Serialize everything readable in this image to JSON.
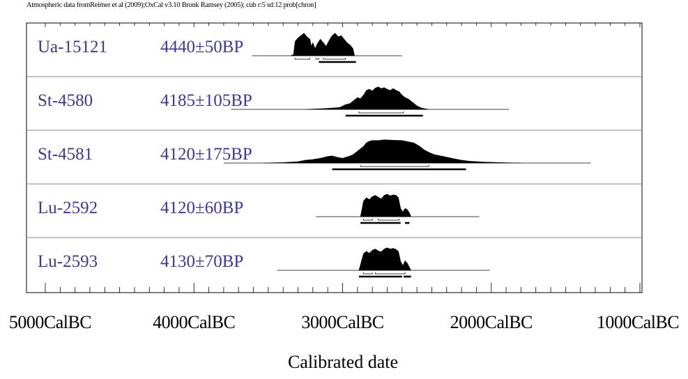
{
  "header": "Atmospheric data fromReimer et al (2009);OxCal v3.10 Bronk Ramsey (2005); cub r:5 sd:12 prob[chron]",
  "chart_data": {
    "type": "area",
    "title": "",
    "xlabel": "Calibrated date",
    "ylabel": "",
    "xlim": [
      -5000,
      -1000
    ],
    "x_ticks": [
      -5000,
      -4000,
      -3000,
      -2000,
      -1000
    ],
    "x_tick_labels": [
      "5000CalBC",
      "4000CalBC",
      "3000CalBC",
      "2000CalBC",
      "1000CalBC"
    ],
    "minor_tick_step": 100,
    "grid": false,
    "series": [
      {
        "name": "Ua-15121",
        "date": "4440±50BP",
        "curve": [
          [
            -3350,
            0
          ],
          [
            -3330,
            0.05
          ],
          [
            -3320,
            0.6
          ],
          [
            -3300,
            0.75
          ],
          [
            -3280,
            0.85
          ],
          [
            -3260,
            0.95
          ],
          [
            -3240,
            0.8
          ],
          [
            -3220,
            0.7
          ],
          [
            -3210,
            0.4
          ],
          [
            -3200,
            0.55
          ],
          [
            -3185,
            0.3
          ],
          [
            -3170,
            0.5
          ],
          [
            -3150,
            0.7
          ],
          [
            -3130,
            0.55
          ],
          [
            -3110,
            0.4
          ],
          [
            -3090,
            0.65
          ],
          [
            -3070,
            0.85
          ],
          [
            -3050,
            0.95
          ],
          [
            -3030,
            0.8
          ],
          [
            -3010,
            0.85
          ],
          [
            -2990,
            0.7
          ],
          [
            -2970,
            0.55
          ],
          [
            -2950,
            0.45
          ],
          [
            -2930,
            0.3
          ],
          [
            -2920,
            0
          ]
        ],
        "range_line": [
          -3610,
          -2600
        ],
        "sigma1": [
          [
            -3320,
            -3220
          ],
          [
            -3180,
            -3160
          ],
          [
            -3130,
            -2980
          ]
        ],
        "sigma2": [
          [
            -3160,
            -2910
          ]
        ]
      },
      {
        "name": "St-4580",
        "date": "4185±105BP",
        "curve": [
          [
            -3250,
            0
          ],
          [
            -3100,
            0.04
          ],
          [
            -3020,
            0.08
          ],
          [
            -2980,
            0.2
          ],
          [
            -2950,
            0.25
          ],
          [
            -2930,
            0.35
          ],
          [
            -2900,
            0.5
          ],
          [
            -2880,
            0.45
          ],
          [
            -2860,
            0.6
          ],
          [
            -2840,
            0.8
          ],
          [
            -2820,
            0.85
          ],
          [
            -2800,
            0.78
          ],
          [
            -2780,
            0.9
          ],
          [
            -2760,
            0.95
          ],
          [
            -2740,
            0.88
          ],
          [
            -2720,
            0.92
          ],
          [
            -2700,
            0.85
          ],
          [
            -2680,
            0.8
          ],
          [
            -2660,
            0.88
          ],
          [
            -2640,
            0.8
          ],
          [
            -2620,
            0.75
          ],
          [
            -2600,
            0.6
          ],
          [
            -2580,
            0.5
          ],
          [
            -2560,
            0.45
          ],
          [
            -2540,
            0.35
          ],
          [
            -2520,
            0.25
          ],
          [
            -2500,
            0.15
          ],
          [
            -2470,
            0.06
          ],
          [
            -2420,
            0
          ]
        ],
        "range_line": [
          -3750,
          -1880
        ],
        "sigma1": [
          [
            -2890,
            -2590
          ]
        ],
        "sigma2": [
          [
            -2980,
            -2460
          ]
        ]
      },
      {
        "name": "St-4581",
        "date": "4120±175BP",
        "curve": [
          [
            -3530,
            0
          ],
          [
            -3400,
            0.02
          ],
          [
            -3300,
            0.06
          ],
          [
            -3250,
            0.12
          ],
          [
            -3200,
            0.15
          ],
          [
            -3150,
            0.2
          ],
          [
            -3100,
            0.28
          ],
          [
            -3070,
            0.3
          ],
          [
            -3040,
            0.25
          ],
          [
            -3000,
            0.2
          ],
          [
            -2960,
            0.28
          ],
          [
            -2930,
            0.35
          ],
          [
            -2900,
            0.5
          ],
          [
            -2880,
            0.6
          ],
          [
            -2860,
            0.7
          ],
          [
            -2840,
            0.85
          ],
          [
            -2820,
            0.92
          ],
          [
            -2800,
            0.95
          ],
          [
            -2760,
            0.95
          ],
          [
            -2720,
            0.98
          ],
          [
            -2680,
            0.97
          ],
          [
            -2640,
            0.96
          ],
          [
            -2600,
            0.95
          ],
          [
            -2560,
            0.9
          ],
          [
            -2520,
            0.85
          ],
          [
            -2480,
            0.7
          ],
          [
            -2450,
            0.55
          ],
          [
            -2420,
            0.45
          ],
          [
            -2380,
            0.35
          ],
          [
            -2340,
            0.3
          ],
          [
            -2300,
            0.25
          ],
          [
            -2250,
            0.18
          ],
          [
            -2200,
            0.12
          ],
          [
            -2150,
            0.08
          ],
          [
            -2050,
            0.04
          ],
          [
            -1950,
            0.02
          ],
          [
            -1800,
            0
          ]
        ],
        "range_line": [
          -3800,
          -1330
        ],
        "sigma1": [
          [
            -2880,
            -2420
          ]
        ],
        "sigma2": [
          [
            -3070,
            -2170
          ]
        ]
      },
      {
        "name": "Lu-2592",
        "date": "4120±60BP",
        "curve": [
          [
            -2880,
            0
          ],
          [
            -2870,
            0.3
          ],
          [
            -2860,
            0.65
          ],
          [
            -2840,
            0.8
          ],
          [
            -2820,
            0.72
          ],
          [
            -2800,
            0.85
          ],
          [
            -2780,
            0.9
          ],
          [
            -2760,
            0.82
          ],
          [
            -2740,
            0.75
          ],
          [
            -2720,
            0.9
          ],
          [
            -2700,
            0.95
          ],
          [
            -2680,
            0.88
          ],
          [
            -2660,
            0.92
          ],
          [
            -2640,
            0.9
          ],
          [
            -2625,
            0.8
          ],
          [
            -2610,
            0.35
          ],
          [
            -2595,
            0.2
          ],
          [
            -2580,
            0.35
          ],
          [
            -2565,
            0.3
          ],
          [
            -2550,
            0.15
          ],
          [
            -2540,
            0
          ]
        ],
        "range_line": [
          -3180,
          -2080
        ],
        "sigma1": [
          [
            -2860,
            -2800
          ],
          [
            -2760,
            -2620
          ]
        ],
        "sigma2": [
          [
            -2880,
            -2610
          ],
          [
            -2580,
            -2550
          ]
        ]
      },
      {
        "name": "Lu-2593",
        "date": "4130±70BP",
        "curve": [
          [
            -2890,
            0
          ],
          [
            -2875,
            0.35
          ],
          [
            -2860,
            0.7
          ],
          [
            -2840,
            0.8
          ],
          [
            -2820,
            0.72
          ],
          [
            -2800,
            0.85
          ],
          [
            -2780,
            0.9
          ],
          [
            -2760,
            0.82
          ],
          [
            -2740,
            0.78
          ],
          [
            -2720,
            0.9
          ],
          [
            -2700,
            0.95
          ],
          [
            -2680,
            0.9
          ],
          [
            -2660,
            0.93
          ],
          [
            -2640,
            0.88
          ],
          [
            -2625,
            0.8
          ],
          [
            -2610,
            0.38
          ],
          [
            -2595,
            0.2
          ],
          [
            -2580,
            0.4
          ],
          [
            -2565,
            0.3
          ],
          [
            -2550,
            0.12
          ],
          [
            -2540,
            0
          ]
        ],
        "range_line": [
          -3440,
          -2010
        ],
        "sigma1": [
          [
            -2860,
            -2800
          ],
          [
            -2780,
            -2580
          ]
        ],
        "sigma2": [
          [
            -2890,
            -2600
          ],
          [
            -2590,
            -2540
          ]
        ]
      }
    ]
  }
}
